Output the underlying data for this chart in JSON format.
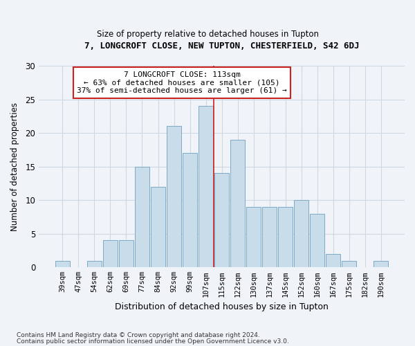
{
  "title": "7, LONGCROFT CLOSE, NEW TUPTON, CHESTERFIELD, S42 6DJ",
  "subtitle": "Size of property relative to detached houses in Tupton",
  "xlabel": "Distribution of detached houses by size in Tupton",
  "ylabel": "Number of detached properties",
  "bar_color": "#c9dcea",
  "bar_edge_color": "#7aaac8",
  "categories": [
    "39sqm",
    "47sqm",
    "54sqm",
    "62sqm",
    "69sqm",
    "77sqm",
    "84sqm",
    "92sqm",
    "99sqm",
    "107sqm",
    "115sqm",
    "122sqm",
    "130sqm",
    "137sqm",
    "145sqm",
    "152sqm",
    "160sqm",
    "167sqm",
    "175sqm",
    "182sqm",
    "190sqm"
  ],
  "values": [
    1,
    0,
    1,
    4,
    4,
    15,
    12,
    21,
    17,
    24,
    14,
    19,
    9,
    9,
    9,
    10,
    8,
    2,
    1,
    0,
    1
  ],
  "property_label": "7 LONGCROFT CLOSE: 113sqm",
  "annotation_line1": "← 63% of detached houses are smaller (105)",
  "annotation_line2": "37% of semi-detached houses are larger (61) →",
  "vline_color": "#cc2222",
  "annotation_box_color": "#ffffff",
  "annotation_box_edge": "#cc2222",
  "ylim": [
    0,
    30
  ],
  "yticks": [
    0,
    5,
    10,
    15,
    20,
    25,
    30
  ],
  "footer1": "Contains HM Land Registry data © Crown copyright and database right 2024.",
  "footer2": "Contains public sector information licensed under the Open Government Licence v3.0.",
  "grid_color": "#ccd8e4",
  "background_color": "#f0f4f8"
}
